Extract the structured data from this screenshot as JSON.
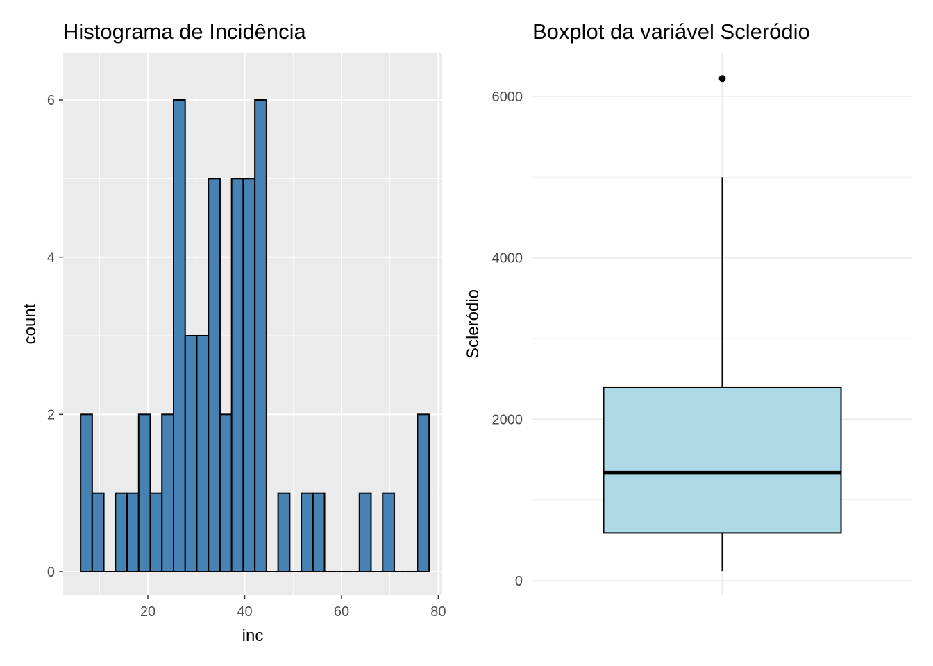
{
  "chart_data": [
    {
      "type": "bar",
      "subtype": "histogram",
      "title": "Histograma de Incidência",
      "xlabel": "inc",
      "ylabel": "count",
      "xlim": [
        2.5,
        80.8
      ],
      "ylim": [
        -0.3,
        6.6
      ],
      "x_ticks": [
        20,
        40,
        60,
        80
      ],
      "y_ticks": [
        0,
        2,
        4,
        6
      ],
      "bin_width": 2.4,
      "bin_centers": [
        7.3,
        9.7,
        12.1,
        14.5,
        16.9,
        19.3,
        21.7,
        24.1,
        26.5,
        28.9,
        31.3,
        33.7,
        36.1,
        38.5,
        40.9,
        43.3,
        45.7,
        48.1,
        50.5,
        52.9,
        55.3,
        57.7,
        60.1,
        62.5,
        64.9,
        67.3,
        69.7,
        72.1,
        74.5,
        76.9
      ],
      "values": [
        2,
        1,
        0,
        1,
        1,
        2,
        1,
        2,
        6,
        3,
        3,
        5,
        2,
        5,
        5,
        6,
        0,
        1,
        0,
        1,
        1,
        0,
        0,
        0,
        1,
        0,
        1,
        0,
        0,
        2
      ],
      "bar_fill": "#4682B4",
      "bar_stroke": "#000000",
      "panel_background": "#EBEBEB",
      "grid": true
    },
    {
      "type": "boxplot",
      "title": "Boxplot da variável Scleródio",
      "xlabel": "",
      "ylabel": "Scleródio",
      "ylim": [
        -180,
        6540
      ],
      "y_ticks": [
        0,
        2000,
        4000,
        6000
      ],
      "stats": {
        "lower_whisker": 120,
        "q1": 590,
        "median": 1340,
        "q3": 2390,
        "upper_whisker": 5000,
        "outliers": [
          6220
        ]
      },
      "box_fill": "#ADD8E6",
      "box_stroke": "#000000",
      "panel_background": "#FFFFFF",
      "grid": true
    }
  ]
}
